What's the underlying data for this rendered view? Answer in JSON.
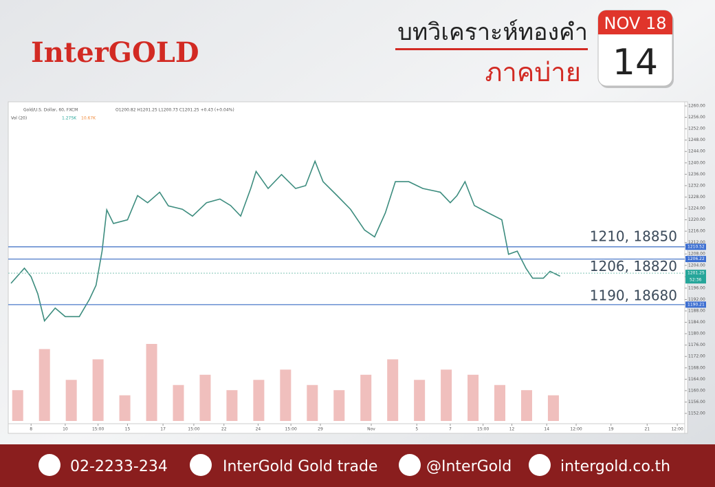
{
  "brand": "InterGOLD",
  "heading": "บทวิเคราะห์ทองคำ",
  "subheading": "ภาคบ่าย",
  "calendar": {
    "month": "NOV 18",
    "day": "14"
  },
  "chart_data": {
    "type": "line",
    "title": "Gold/U.S. Dollar, 60, FXCM",
    "ohlc": "O1200.82 H1201.25 L1200.73 C1201.25 +0.43 (+0.04%)",
    "volume_title": "Vol (20)",
    "volume_readings": [
      "1.275K",
      "10.67K"
    ],
    "countdown": "52:36",
    "xlim": [
      0,
      100
    ],
    "xticks": [
      {
        "value": 3,
        "label": "8"
      },
      {
        "value": 8.1,
        "label": "10"
      },
      {
        "value": 13,
        "label": "15:00"
      },
      {
        "value": 17.4,
        "label": "15"
      },
      {
        "value": 22.7,
        "label": "17"
      },
      {
        "value": 27.3,
        "label": "15:00"
      },
      {
        "value": 31.8,
        "label": "22"
      },
      {
        "value": 36.9,
        "label": "24"
      },
      {
        "value": 41.8,
        "label": "15:00"
      },
      {
        "value": 46.2,
        "label": "29"
      },
      {
        "value": 53.8,
        "label": "Nov"
      },
      {
        "value": 60.6,
        "label": "5"
      },
      {
        "value": 65.6,
        "label": "7"
      },
      {
        "value": 70.5,
        "label": "15:00"
      },
      {
        "value": 74.8,
        "label": "12"
      },
      {
        "value": 80,
        "label": "14"
      },
      {
        "value": 84.4,
        "label": "12:00"
      },
      {
        "value": 89.6,
        "label": "19"
      },
      {
        "value": 95,
        "label": "21"
      },
      {
        "value": 99.5,
        "label": "12:00"
      }
    ],
    "ylim": [
      1152,
      1260
    ],
    "yticks": [
      {
        "value": 1152,
        "label": "1152.00"
      },
      {
        "value": 1156,
        "label": "1156.00"
      },
      {
        "value": 1160,
        "label": "1160.00"
      },
      {
        "value": 1164,
        "label": "1164.00"
      },
      {
        "value": 1168,
        "label": "1168.00"
      },
      {
        "value": 1172,
        "label": "1172.00"
      },
      {
        "value": 1176,
        "label": "1176.00"
      },
      {
        "value": 1180,
        "label": "1180.00"
      },
      {
        "value": 1184,
        "label": "1184.00"
      },
      {
        "value": 1188,
        "label": "1188.00"
      },
      {
        "value": 1192,
        "label": "1192.00"
      },
      {
        "value": 1196,
        "label": "1196.00"
      },
      {
        "value": 1200,
        "label": "1200.00"
      },
      {
        "value": 1204,
        "label": "1204.00"
      },
      {
        "value": 1208,
        "label": "1208.00"
      },
      {
        "value": 1212,
        "label": "1212.00"
      },
      {
        "value": 1216,
        "label": "1216.00"
      },
      {
        "value": 1220,
        "label": "1220.00"
      },
      {
        "value": 1224,
        "label": "1224.00"
      },
      {
        "value": 1228,
        "label": "1228.00"
      },
      {
        "value": 1232,
        "label": "1232.00"
      },
      {
        "value": 1236,
        "label": "1236.00"
      },
      {
        "value": 1240,
        "label": "1240.00"
      },
      {
        "value": 1244,
        "label": "1244.00"
      },
      {
        "value": 1248,
        "label": "1248.00"
      },
      {
        "value": 1252,
        "label": "1252.00"
      },
      {
        "value": 1256,
        "label": "1256.00"
      },
      {
        "value": 1260,
        "label": "1260.00"
      }
    ],
    "y2lim": [
      0,
      15
    ],
    "series": [
      {
        "name": "Gold/U.S. Dollar",
        "color": "#3c8c7e",
        "x": [
          0,
          2.0,
          3.0,
          4.0,
          5.0,
          6.6,
          8.1,
          10.2,
          11.7,
          12.7,
          13.6,
          14.3,
          15.3,
          17.4,
          18.9,
          20.4,
          22.2,
          23.5,
          25.6,
          27.1,
          29.2,
          31.2,
          32.8,
          34.3,
          35.8,
          36.6,
          38.4,
          40.4,
          42.5,
          44.0,
          45.4,
          46.6,
          48.7,
          50.7,
          52.8,
          54.3,
          55.9,
          57.4,
          59.4,
          61.5,
          64.1,
          65.6,
          66.6,
          67.8,
          69.2,
          71.3,
          73.3,
          74.3,
          75.6,
          76.9,
          77.9,
          79.5,
          80.5,
          82.0
        ],
        "values": [
          1197.7,
          1203,
          1200,
          1194,
          1184.5,
          1189,
          1186,
          1186,
          1192,
          1197,
          1209,
          1223.5,
          1218.7,
          1220,
          1228.5,
          1226,
          1229.7,
          1224.9,
          1223.7,
          1221.3,
          1226,
          1227.3,
          1225,
          1221.3,
          1231,
          1237,
          1231,
          1235.9,
          1231,
          1232,
          1240.6,
          1233.4,
          1228.5,
          1223.7,
          1216.4,
          1214,
          1222.4,
          1233.4,
          1233.4,
          1231,
          1229.7,
          1226,
          1228.5,
          1233.4,
          1225,
          1222.4,
          1220,
          1207.9,
          1209,
          1203,
          1199.5,
          1199.5,
          1201.9,
          1200.2
        ]
      },
      {
        "name": "Vol",
        "color": "#e9a4a1",
        "axis": "y2",
        "x": [
          1,
          5,
          9,
          13,
          17,
          21,
          25,
          29,
          33,
          37,
          41,
          45,
          49,
          53,
          57,
          61,
          65,
          69,
          73,
          77,
          81
        ],
        "values": [
          6,
          14,
          8,
          12,
          5,
          15,
          7,
          9,
          6,
          8,
          10,
          7,
          6,
          9,
          12,
          8,
          10,
          9,
          7,
          6,
          5
        ]
      }
    ],
    "levels": [
      {
        "value": 1210.52,
        "note": "1210, 18850"
      },
      {
        "value": 1206.22,
        "note": "1206, 18820"
      },
      {
        "value": 1190.21,
        "note": "1190, 18680"
      }
    ],
    "last_price": 1201.25,
    "grid": false
  },
  "footer": {
    "phone": "02-2233-234",
    "facebook": "InterGold Gold trade",
    "line": "@InterGold",
    "website": "intergold.co.th"
  }
}
